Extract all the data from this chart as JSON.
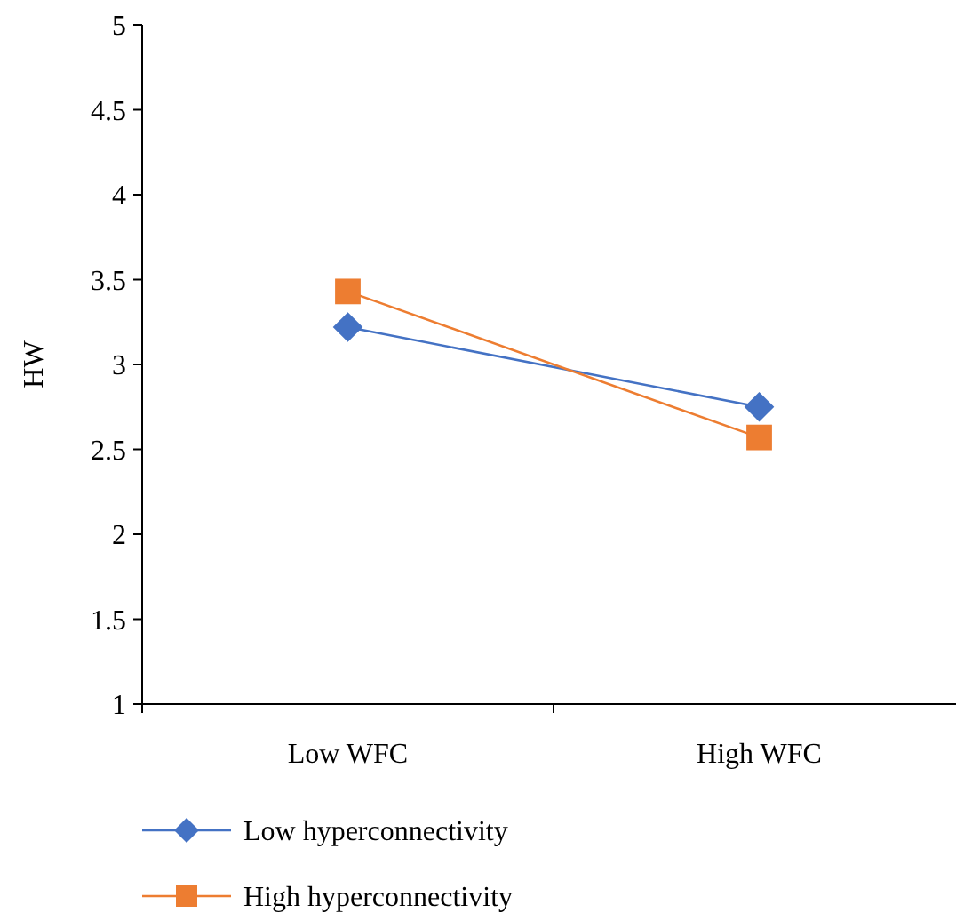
{
  "chart_data": {
    "type": "line",
    "ylabel": "HW",
    "categories": [
      "Low WFC",
      "High WFC"
    ],
    "ylim": [
      1,
      5
    ],
    "yticks": [
      1,
      1.5,
      2,
      2.5,
      3,
      3.5,
      4,
      4.5,
      5
    ],
    "grid": false,
    "legend": "bottom left",
    "series": [
      {
        "name": "Low hyperconnectivity",
        "color": "#4472c4",
        "marker": "diamond",
        "values": [
          3.22,
          2.75
        ]
      },
      {
        "name": "High hyperconnectivity",
        "color": "#ed7d31",
        "marker": "square",
        "values": [
          3.43,
          2.57
        ]
      }
    ]
  }
}
